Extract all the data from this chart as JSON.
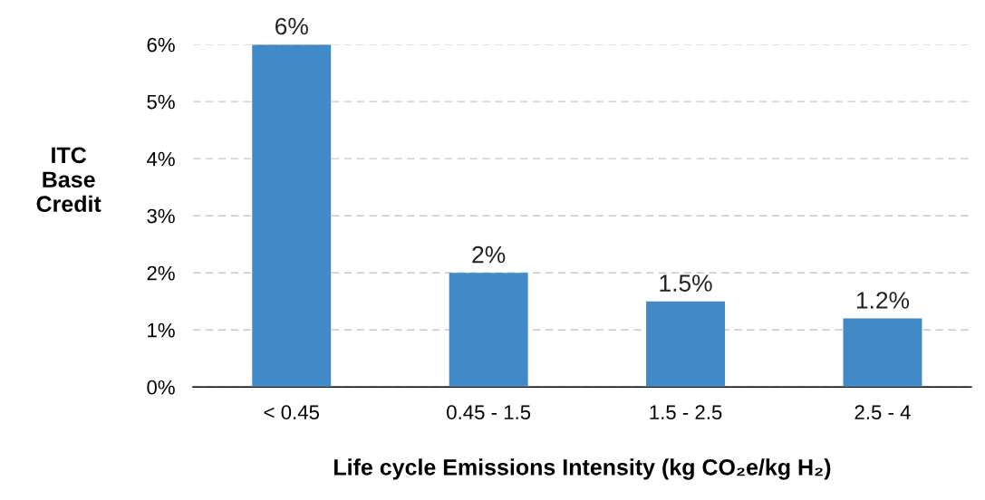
{
  "chart_data": {
    "type": "bar",
    "xlabel": "Life cycle Emissions Intensity (kg CO₂e/kg H₂)",
    "ylabel": "ITC\nBase\nCredit",
    "categories": [
      "< 0.45",
      "0.45 - 1.5",
      "1.5 - 2.5",
      "2.5 - 4"
    ],
    "values": [
      6,
      2,
      1.5,
      1.2
    ],
    "value_labels": [
      "6%",
      "2%",
      "1.5%",
      "1.2%"
    ],
    "color": "#4189c7",
    "ylim": [
      0,
      6
    ],
    "yticks": [
      {
        "value": 0,
        "label": "0%"
      },
      {
        "value": 1,
        "label": "1%"
      },
      {
        "value": 2,
        "label": "2%"
      },
      {
        "value": 3,
        "label": "3%"
      },
      {
        "value": 4,
        "label": "4%"
      },
      {
        "value": 5,
        "label": "5%"
      },
      {
        "value": 6,
        "label": "6%"
      }
    ],
    "grid": "y"
  }
}
